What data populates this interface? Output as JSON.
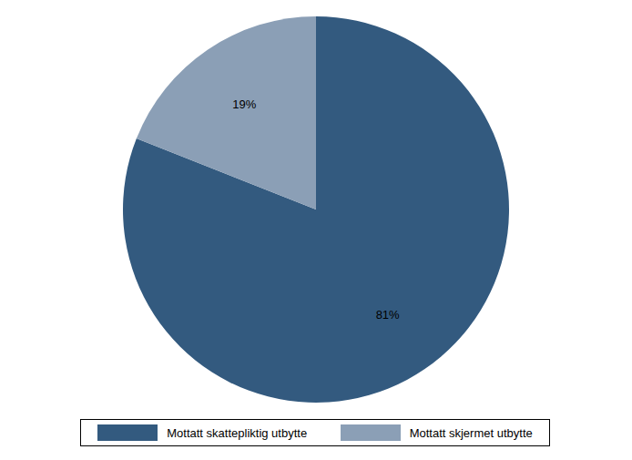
{
  "chart_data": {
    "type": "pie",
    "categories": [
      "Mottatt skattepliktig utbytte",
      "Mottatt skjermet utbytte"
    ],
    "values": [
      81,
      19
    ],
    "value_labels": [
      "81%",
      "19%"
    ],
    "colors": [
      "#335a7f",
      "#8b9fb6"
    ],
    "data_labels": true,
    "legend": "bottom"
  }
}
